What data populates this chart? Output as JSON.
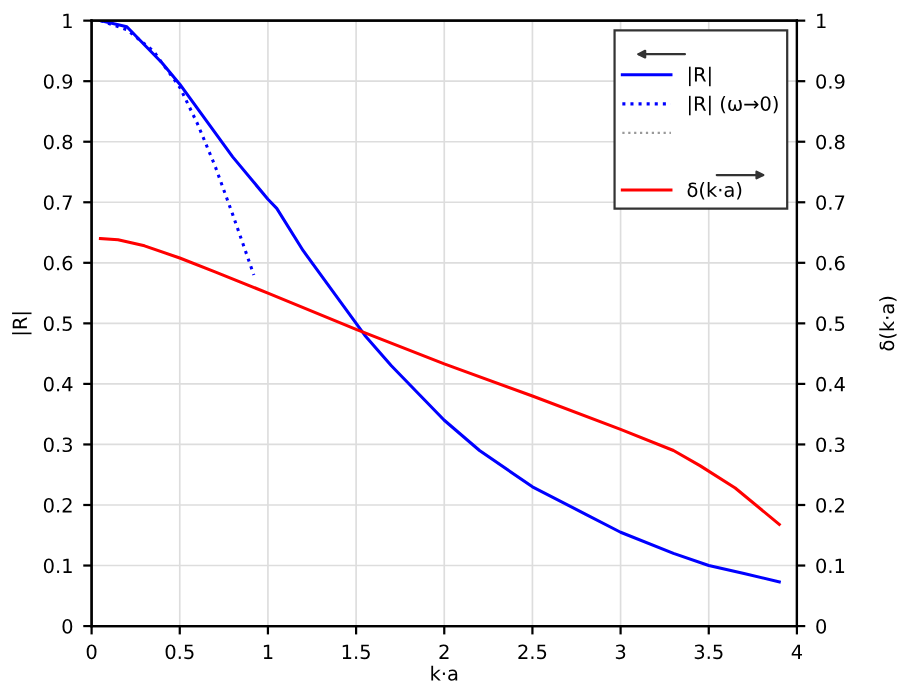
{
  "chart_data": {
    "type": "line",
    "xlabel": "k·a",
    "ylabel": "|R|",
    "y2label": "δ(k·a)",
    "xlim": [
      0,
      4
    ],
    "xticks": [
      0,
      0.5,
      1,
      1.5,
      2,
      2.5,
      3,
      3.5,
      4
    ],
    "ylim": [
      0,
      1
    ],
    "yticks": [
      0,
      0.1,
      0.2,
      0.3,
      0.4,
      0.5,
      0.6,
      0.7,
      0.8,
      0.9,
      1
    ],
    "y2lim": [
      0,
      1
    ],
    "y2ticks": [
      0,
      0.1,
      0.2,
      0.3,
      0.4,
      0.5,
      0.6,
      0.7,
      0.8,
      0.9,
      1
    ],
    "grid": true,
    "legend": "top right",
    "marker": "none",
    "series": [
      {
        "name": "|R|",
        "color": "#0000ff",
        "line_style": "solid",
        "x": [
          0.05,
          0.2,
          0.4,
          0.5,
          0.6,
          0.8,
          1.0,
          1.05,
          1.2,
          1.4,
          1.55,
          1.7,
          2.0,
          2.2,
          2.5,
          2.8,
          3.0,
          3.3,
          3.5,
          3.7,
          3.9
        ],
        "values": [
          1.0,
          0.99,
          0.93,
          0.895,
          0.855,
          0.775,
          0.705,
          0.69,
          0.62,
          0.54,
          0.48,
          0.43,
          0.34,
          0.29,
          0.23,
          0.185,
          0.155,
          0.12,
          0.1,
          0.087,
          0.073
        ]
      },
      {
        "name": "|R| (ω→0)",
        "color": "#0000ff",
        "line_style": "dotted",
        "x": [
          0.05,
          0.2,
          0.35,
          0.5,
          0.6,
          0.7,
          0.8,
          0.92
        ],
        "values": [
          1.0,
          0.985,
          0.95,
          0.89,
          0.83,
          0.76,
          0.68,
          0.58
        ]
      },
      {
        "name": "δ(k·a)",
        "color": "#ff0000",
        "line_style": "solid",
        "axis": "y2",
        "x": [
          0.05,
          0.15,
          0.3,
          0.5,
          0.7,
          1.0,
          1.5,
          2.0,
          2.5,
          3.0,
          3.3,
          3.45,
          3.65,
          3.9
        ],
        "values": [
          0.64,
          0.638,
          0.628,
          0.608,
          0.585,
          0.55,
          0.49,
          0.433,
          0.38,
          0.325,
          0.29,
          0.265,
          0.228,
          0.168
        ]
      }
    ]
  }
}
